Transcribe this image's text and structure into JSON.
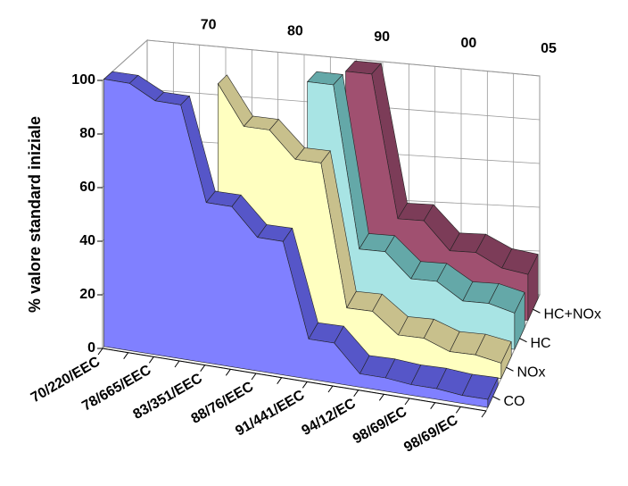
{
  "chart_data": {
    "type": "area3d",
    "y_label": "% valore standard iniziale",
    "categories": [
      "70/220/EEC",
      null,
      "78/665/EEC",
      null,
      "83/351/EEC",
      null,
      "88/76/EEC",
      null,
      "91/441/EEC",
      null,
      "94/12/EC",
      null,
      "98/69/EC",
      null,
      "98/69/EC",
      null
    ],
    "top_axis_labels": [
      "70",
      "80",
      "90",
      "00",
      "05"
    ],
    "ylim": [
      0,
      100
    ],
    "yticks": [
      0,
      20,
      40,
      60,
      80,
      100
    ],
    "grid": true,
    "series": [
      {
        "name": "CO",
        "color": "#8080ff",
        "top_color": "#5656c8",
        "values": [
          100,
          100,
          95,
          95,
          60,
          60,
          50,
          50,
          15,
          15,
          5,
          5,
          4,
          4,
          3,
          3
        ]
      },
      {
        "name": "NOx",
        "color": "#ffffc0",
        "top_color": "#c8c08c",
        "values": [
          null,
          null,
          null,
          null,
          100,
          85,
          85,
          75,
          75,
          20,
          20,
          12,
          12,
          8,
          8,
          6
        ]
      },
      {
        "name": "HC",
        "color": "#a8e4e4",
        "top_color": "#64a8a8",
        "values": [
          null,
          null,
          null,
          null,
          null,
          null,
          null,
          100,
          100,
          35,
          35,
          25,
          25,
          18,
          18,
          15
        ]
      },
      {
        "name": "HC+NOx",
        "color": "#a05070",
        "top_color": "#7c3c58",
        "values": [
          null,
          null,
          null,
          null,
          null,
          null,
          null,
          null,
          100,
          100,
          40,
          40,
          28,
          28,
          22,
          20
        ]
      }
    ]
  }
}
